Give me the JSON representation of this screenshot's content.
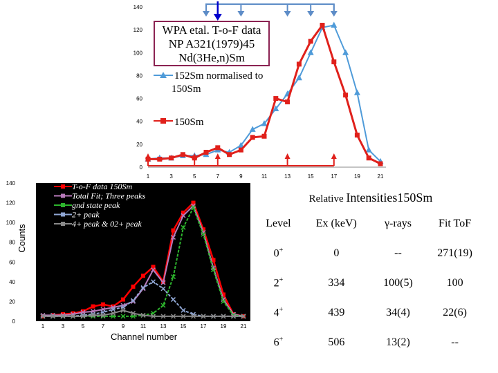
{
  "title_box": {
    "line1": "WPA etal. T-o-F data",
    "line2": "NP A321(1979)45",
    "line3": "Nd(3He,n)Sm"
  },
  "chart_data": [
    {
      "type": "line",
      "name": "top-chart",
      "x": [
        1,
        2,
        3,
        4,
        5,
        6,
        7,
        8,
        9,
        10,
        11,
        12,
        13,
        14,
        15,
        16,
        17,
        18,
        19,
        20,
        21
      ],
      "series": [
        {
          "name": "152Sm normalised to 150Sm",
          "color": "#4f9bd9",
          "marker": "triangle",
          "values": [
            7,
            8,
            8,
            10,
            10,
            11,
            15,
            13,
            19,
            33,
            38,
            51,
            64,
            78,
            100,
            122,
            124,
            100,
            65,
            15,
            5
          ]
        },
        {
          "name": "150Sm",
          "color": "#e0201b",
          "marker": "square",
          "values": [
            7,
            7,
            8,
            11,
            8,
            13,
            17,
            11,
            15,
            26,
            27,
            60,
            57,
            90,
            110,
            124,
            92,
            63,
            28,
            8,
            3
          ]
        }
      ],
      "xticks": [
        1,
        3,
        5,
        7,
        9,
        11,
        13,
        15,
        17,
        19,
        21
      ],
      "yticks": [
        0,
        20,
        40,
        60,
        80,
        100,
        120,
        140
      ],
      "ylim": [
        0,
        140
      ],
      "arrows_top": [
        6,
        9,
        13,
        15,
        17
      ],
      "arrow_top_blue": 7,
      "arrows_bottom": [
        1,
        5,
        7,
        13,
        17
      ],
      "legend": [
        "152Sm normalised to",
        "150Sm",
        "150Sm"
      ]
    },
    {
      "type": "line",
      "name": "bottom-chart",
      "x": [
        1,
        2,
        3,
        4,
        5,
        6,
        7,
        8,
        9,
        10,
        11,
        12,
        13,
        14,
        15,
        16,
        17,
        18,
        19,
        20,
        21
      ],
      "series": [
        {
          "name": "T-o-F data 150Sm",
          "color": "#ff0000",
          "marker": "square",
          "values": [
            5,
            6,
            7,
            8,
            10,
            15,
            17,
            15,
            22,
            35,
            46,
            55,
            40,
            92,
            110,
            120,
            93,
            62,
            27,
            7,
            5
          ]
        },
        {
          "name": "Total Fit; Three peaks",
          "color": "#b87aba",
          "marker": "star",
          "values": [
            6,
            6,
            6,
            7,
            9,
            10,
            12,
            14,
            16,
            20,
            33,
            52,
            39,
            85,
            107,
            117,
            90,
            54,
            22,
            7,
            5
          ]
        },
        {
          "name": "gnd state peak",
          "color": "#2db52d",
          "marker": "x",
          "values": [
            5,
            5,
            5,
            5,
            5,
            5,
            5,
            5,
            5,
            5,
            6,
            8,
            16,
            45,
            95,
            115,
            88,
            52,
            20,
            6,
            5
          ]
        },
        {
          "name": "2+ peak",
          "color": "#8fa6d3",
          "marker": "x",
          "values": [
            5,
            5,
            5,
            5,
            6,
            7,
            9,
            12,
            14,
            21,
            34,
            40,
            33,
            22,
            11,
            7,
            5,
            5,
            5,
            5,
            5
          ]
        },
        {
          "name": "4+ peak & 02+ peak",
          "color": "#8a8a8a",
          "marker": "star",
          "values": [
            5,
            5,
            5,
            5,
            5,
            6,
            6,
            8,
            11,
            8,
            6,
            5,
            5,
            5,
            5,
            5,
            5,
            5,
            5,
            5,
            5
          ]
        }
      ],
      "xticks": [
        1,
        3,
        5,
        7,
        9,
        11,
        13,
        15,
        17,
        19,
        21
      ],
      "yticks": [
        0,
        20,
        40,
        60,
        80,
        100,
        120,
        140
      ],
      "ylim": [
        0,
        140
      ],
      "xlabel": "Channel number",
      "ylabel": "Counts"
    }
  ],
  "table": {
    "title_small": "Relative ",
    "title_big": "Intensities150Sm",
    "headers": {
      "level": "Level",
      "ex": "Ex (keV)",
      "gamma": "γ-rays",
      "fit": "Fit ToF"
    },
    "rows": [
      {
        "level": "0",
        "parity": "+",
        "ex": "0",
        "gamma": "--",
        "fit": "271(19)"
      },
      {
        "level": "2",
        "parity": "+",
        "ex": "334",
        "gamma": "100(5)",
        "fit": "100"
      },
      {
        "level": "4",
        "parity": "+",
        "ex": "439",
        "gamma": "34(4)",
        "fit": "22(6)"
      },
      {
        "level": "6",
        "parity": "+",
        "ex": "506",
        "gamma": "13(2)",
        "fit": "--"
      }
    ]
  }
}
